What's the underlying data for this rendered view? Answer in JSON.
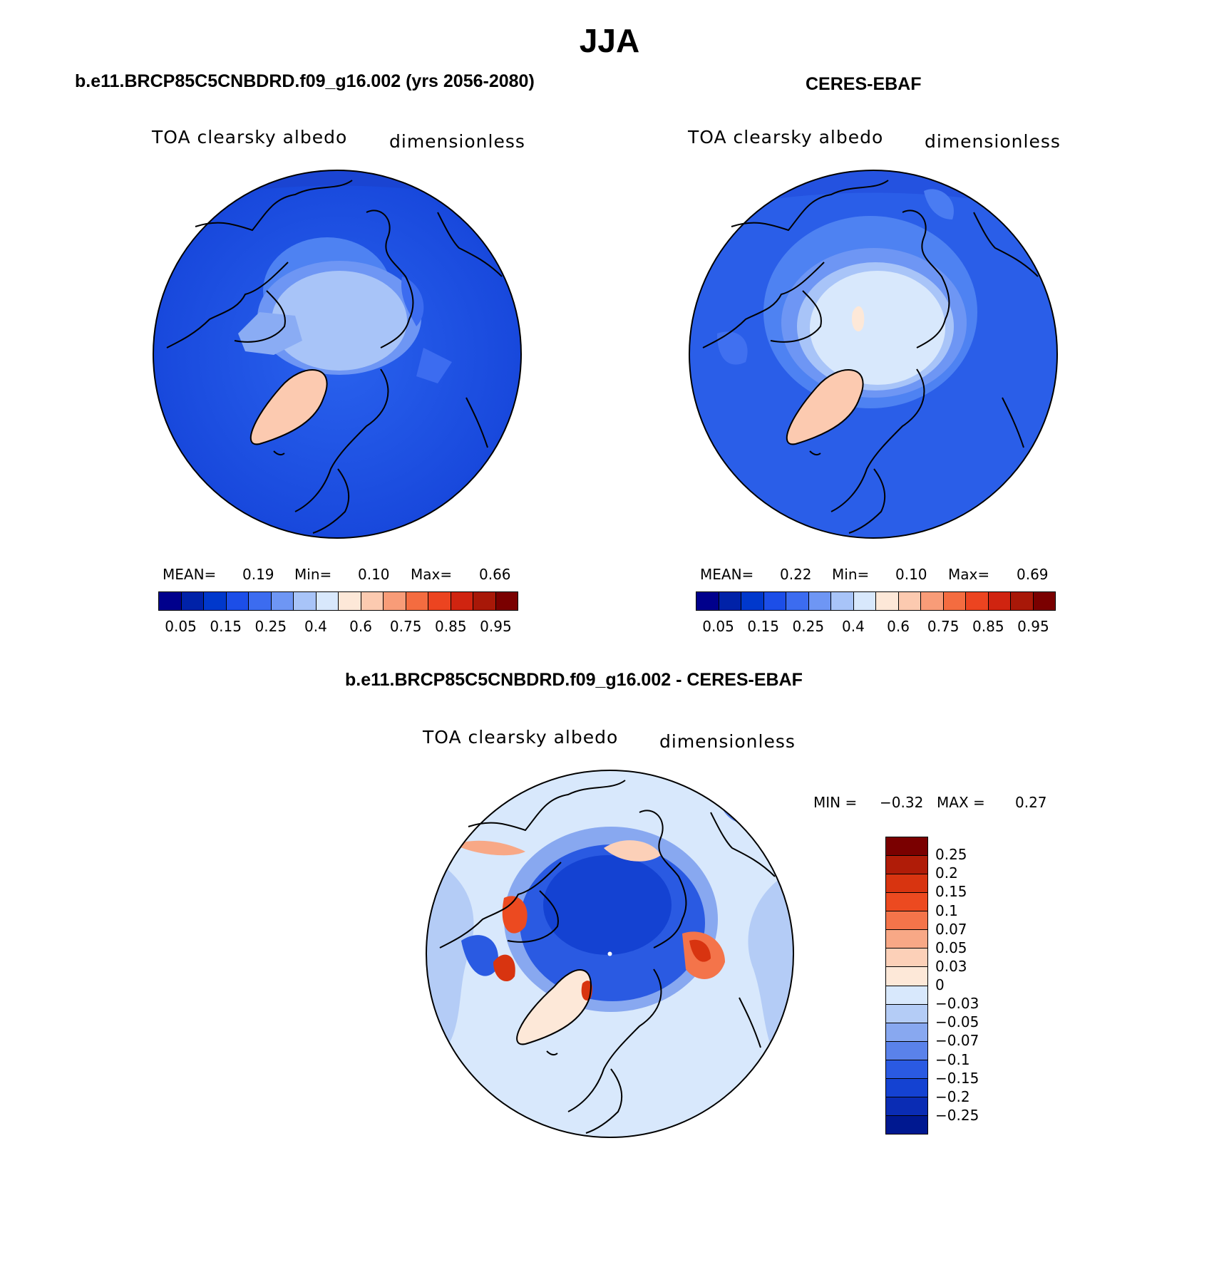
{
  "title": "JJA",
  "colors": {
    "abs_scale": [
      "#00008c",
      "#0022a8",
      "#0038cc",
      "#1c4ee8",
      "#3c6cf0",
      "#6e96f4",
      "#a8c4f8",
      "#d8e8fc",
      "#fde8d8",
      "#fccab0",
      "#f89c78",
      "#f46c40",
      "#ec4420",
      "#d02410",
      "#a81808",
      "#7a0000"
    ],
    "diff_scale": [
      "#7a0000",
      "#b01c08",
      "#d83410",
      "#ec4a20",
      "#f4744a",
      "#f8a886",
      "#fcd0b8",
      "#fde8d8",
      "#d8e8fc",
      "#b4ccf6",
      "#88a8f0",
      "#5a82ea",
      "#2a5ae2",
      "#1442d2",
      "#0a2cb4",
      "#001890"
    ]
  },
  "panels": {
    "model": {
      "title": "b.e11.BRCP85C5CNBDRD.f09_g16.002 (yrs 2056-2080)",
      "variable": "TOA clearsky albedo",
      "units": "dimensionless",
      "mean_label": "MEAN=",
      "mean": "0.19",
      "min_label": "Min=",
      "min": "0.10",
      "max_label": "Max=",
      "max": "0.66"
    },
    "obs": {
      "title": "CERES-EBAF",
      "variable": "TOA clearsky albedo",
      "units": "dimensionless",
      "mean_label": "MEAN=",
      "mean": "0.22",
      "min_label": "Min=",
      "min": "0.10",
      "max_label": "Max=",
      "max": "0.69"
    },
    "diff": {
      "title": "b.e11.BRCP85C5CNBDRD.f09_g16.002 - CERES-EBAF",
      "variable": "TOA clearsky albedo",
      "units": "dimensionless",
      "min_label": "MIN =",
      "min": "−0.32",
      "max_label": "MAX =",
      "max": "0.27"
    }
  },
  "abs_ticks": [
    "0.05",
    "0.15",
    "0.25",
    "0.4",
    "0.6",
    "0.75",
    "0.85",
    "0.95"
  ],
  "diff_ticks": [
    "0.25",
    "0.2",
    "0.15",
    "0.1",
    "0.07",
    "0.05",
    "0.03",
    "0",
    "−0.03",
    "−0.05",
    "−0.07",
    "−0.1",
    "−0.15",
    "−0.2",
    "−0.25"
  ]
}
